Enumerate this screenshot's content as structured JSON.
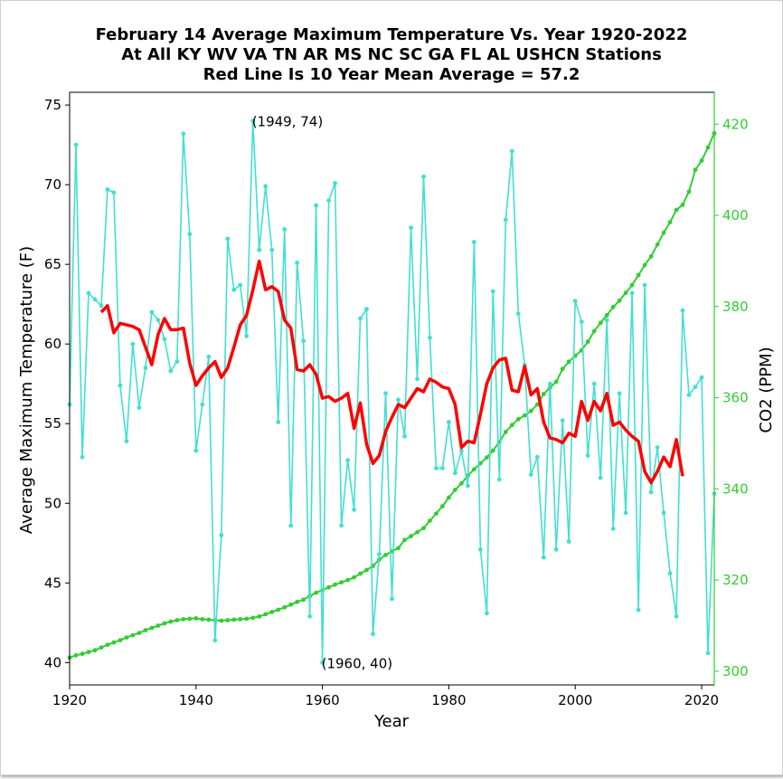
{
  "chart_data": {
    "type": "line",
    "title": [
      "February 14 Average Maximum Temperature Vs. Year 1920-2022",
      "At All KY WV VA TN AR MS NC SC GA FL AL USHCN Stations",
      "Red Line Is 10 Year Mean  Average = 57.2"
    ],
    "xlabel": "Year",
    "ylabel": "Average Maximum Temperature (F)",
    "y2label": "CO2 (PPM)",
    "xlim": [
      1920,
      2022
    ],
    "ylim": [
      38.6,
      75.8
    ],
    "y2lim": [
      297,
      427
    ],
    "xticks": [
      1920,
      1940,
      1960,
      1980,
      2000,
      2020
    ],
    "yticks": [
      40,
      45,
      50,
      55,
      60,
      65,
      70,
      75
    ],
    "y2ticks": [
      300,
      320,
      340,
      360,
      380,
      400,
      420
    ],
    "grid": false,
    "colors": {
      "temperature": "#40e0d0",
      "mean": "#ff0000",
      "co2": "#32cd32",
      "y2axis": "#32cd32"
    },
    "annotations": [
      {
        "text": "(1949, 74)",
        "x": 1949,
        "y": 74
      },
      {
        "text": "(1960, 40)",
        "x": 1960,
        "y": 40
      }
    ],
    "series": [
      {
        "key": "temperature",
        "x": [
          1920,
          1921,
          1922,
          1923,
          1924,
          1925,
          1926,
          1927,
          1928,
          1929,
          1930,
          1931,
          1932,
          1933,
          1934,
          1935,
          1936,
          1937,
          1938,
          1939,
          1940,
          1941,
          1942,
          1943,
          1944,
          1945,
          1946,
          1947,
          1948,
          1949,
          1950,
          1951,
          1952,
          1953,
          1954,
          1955,
          1956,
          1957,
          1958,
          1959,
          1960,
          1961,
          1962,
          1963,
          1964,
          1965,
          1966,
          1967,
          1968,
          1969,
          1970,
          1971,
          1972,
          1973,
          1974,
          1975,
          1976,
          1977,
          1978,
          1979,
          1980,
          1981,
          1982,
          1983,
          1984,
          1985,
          1986,
          1987,
          1988,
          1989,
          1990,
          1991,
          1992,
          1993,
          1994,
          1995,
          1996,
          1997,
          1998,
          1999,
          2000,
          2001,
          2002,
          2003,
          2004,
          2005,
          2006,
          2007,
          2008,
          2009,
          2010,
          2011,
          2012,
          2013,
          2014,
          2015,
          2016,
          2017,
          2018,
          2019,
          2020,
          2021,
          2022
        ],
        "values": [
          56.2,
          72.5,
          52.9,
          63.2,
          62.8,
          62.4,
          69.7,
          69.5,
          57.4,
          53.9,
          60.0,
          56.0,
          58.5,
          62.0,
          61.5,
          60.3,
          58.3,
          58.9,
          73.2,
          66.9,
          53.3,
          56.2,
          59.2,
          41.4,
          48.0,
          66.6,
          63.4,
          63.7,
          60.5,
          74.0,
          65.9,
          69.9,
          65.9,
          55.1,
          67.2,
          48.6,
          65.1,
          60.2,
          42.9,
          68.7,
          40.0,
          69.0,
          70.1,
          48.6,
          52.7,
          49.6,
          61.6,
          62.2,
          41.8,
          46.8,
          56.9,
          44.0,
          56.5,
          54.2,
          67.3,
          57.8,
          70.5,
          60.4,
          52.2,
          52.2,
          55.1,
          51.9,
          53.3,
          51.1,
          66.4,
          47.1,
          43.1,
          63.3,
          51.5,
          67.8,
          72.1,
          61.9,
          58.7,
          51.8,
          52.9,
          46.6,
          57.5,
          47.1,
          55.2,
          47.6,
          62.7,
          61.4,
          53.0,
          57.5,
          51.6,
          61.5,
          48.4,
          56.9,
          49.4,
          63.2,
          43.3,
          63.7,
          50.7,
          53.5,
          49.4,
          45.6,
          42.9,
          62.1,
          56.8,
          57.3,
          57.9,
          40.6,
          50.6
        ]
      },
      {
        "key": "mean",
        "x": [
          1925,
          1926,
          1927,
          1928,
          1929,
          1930,
          1931,
          1932,
          1933,
          1934,
          1935,
          1936,
          1937,
          1938,
          1939,
          1940,
          1941,
          1942,
          1943,
          1944,
          1945,
          1946,
          1947,
          1948,
          1949,
          1950,
          1951,
          1952,
          1953,
          1954,
          1955,
          1956,
          1957,
          1958,
          1959,
          1960,
          1961,
          1962,
          1963,
          1964,
          1965,
          1966,
          1967,
          1968,
          1969,
          1970,
          1971,
          1972,
          1973,
          1974,
          1975,
          1976,
          1977,
          1978,
          1979,
          1980,
          1981,
          1982,
          1983,
          1984,
          1985,
          1986,
          1987,
          1988,
          1989,
          1990,
          1991,
          1992,
          1993,
          1994,
          1995,
          1996,
          1997,
          1998,
          1999,
          2000,
          2001,
          2002,
          2003,
          2004,
          2005,
          2006,
          2007,
          2008,
          2009,
          2010,
          2011,
          2012,
          2013,
          2014,
          2015,
          2016,
          2017
        ],
        "values": [
          62.0,
          62.4,
          60.7,
          61.3,
          61.2,
          61.1,
          60.9,
          59.8,
          58.7,
          60.6,
          61.6,
          60.9,
          60.9,
          61.0,
          58.8,
          57.4,
          58.0,
          58.5,
          58.9,
          57.9,
          58.5,
          59.8,
          61.2,
          61.8,
          63.4,
          65.2,
          63.4,
          63.6,
          63.3,
          61.5,
          61.0,
          58.4,
          58.3,
          58.7,
          58.1,
          56.6,
          56.7,
          56.4,
          56.6,
          56.9,
          54.7,
          56.3,
          53.7,
          52.5,
          53.0,
          54.5,
          55.4,
          56.2,
          56.0,
          56.6,
          57.2,
          57.0,
          57.8,
          57.6,
          57.3,
          57.2,
          56.2,
          53.5,
          53.9,
          53.8,
          55.6,
          57.5,
          58.5,
          59.0,
          59.1,
          57.1,
          57.0,
          58.6,
          56.8,
          57.2,
          55.1,
          54.1,
          54.0,
          53.8,
          54.4,
          54.2,
          56.4,
          55.2,
          56.4,
          55.8,
          56.9,
          54.9,
          55.1,
          54.6,
          54.2,
          53.9,
          52.0,
          51.3,
          52.0,
          52.9,
          52.3,
          54.0,
          51.7
        ]
      },
      {
        "key": "co2",
        "x": [
          1920,
          1921,
          1922,
          1923,
          1924,
          1925,
          1926,
          1927,
          1928,
          1929,
          1930,
          1931,
          1932,
          1933,
          1934,
          1935,
          1936,
          1937,
          1938,
          1939,
          1940,
          1941,
          1942,
          1943,
          1944,
          1945,
          1946,
          1947,
          1948,
          1949,
          1950,
          1951,
          1952,
          1953,
          1954,
          1955,
          1956,
          1957,
          1958,
          1959,
          1960,
          1961,
          1962,
          1963,
          1964,
          1965,
          1966,
          1967,
          1968,
          1969,
          1970,
          1971,
          1972,
          1973,
          1974,
          1975,
          1976,
          1977,
          1978,
          1979,
          1980,
          1981,
          1982,
          1983,
          1984,
          1985,
          1986,
          1987,
          1988,
          1989,
          1990,
          1991,
          1992,
          1993,
          1994,
          1995,
          1996,
          1997,
          1998,
          1999,
          2000,
          2001,
          2002,
          2003,
          2004,
          2005,
          2006,
          2007,
          2008,
          2009,
          2010,
          2011,
          2012,
          2013,
          2014,
          2015,
          2016,
          2017,
          2018,
          2019,
          2020,
          2021,
          2022
        ],
        "values": [
          303.0,
          303.5,
          303.8,
          304.2,
          304.6,
          305.2,
          305.8,
          306.3,
          306.8,
          307.4,
          307.9,
          308.4,
          309.0,
          309.5,
          310.0,
          310.5,
          310.9,
          311.2,
          311.4,
          311.5,
          311.6,
          311.4,
          311.3,
          311.2,
          311.1,
          311.2,
          311.3,
          311.4,
          311.5,
          311.7,
          312.0,
          312.5,
          313.0,
          313.5,
          314.0,
          314.6,
          315.2,
          315.7,
          316.5,
          317.2,
          317.8,
          318.4,
          319.0,
          319.5,
          320.0,
          320.6,
          321.4,
          322.2,
          323.1,
          324.5,
          325.5,
          326.3,
          327.0,
          328.8,
          329.6,
          330.5,
          331.4,
          333.0,
          334.6,
          336.2,
          338.1,
          339.8,
          341.2,
          342.9,
          344.3,
          345.6,
          346.9,
          348.4,
          350.3,
          352.5,
          354.0,
          355.3,
          356.1,
          357.1,
          358.5,
          360.8,
          362.2,
          363.5,
          366.3,
          367.9,
          369.2,
          370.4,
          372.3,
          374.6,
          376.4,
          378.1,
          379.9,
          381.3,
          383.0,
          384.7,
          386.9,
          389.1,
          391.0,
          393.6,
          396.2,
          398.5,
          401.2,
          402.3,
          405.2,
          410.0,
          412.0,
          414.9,
          418.0
        ]
      }
    ]
  }
}
